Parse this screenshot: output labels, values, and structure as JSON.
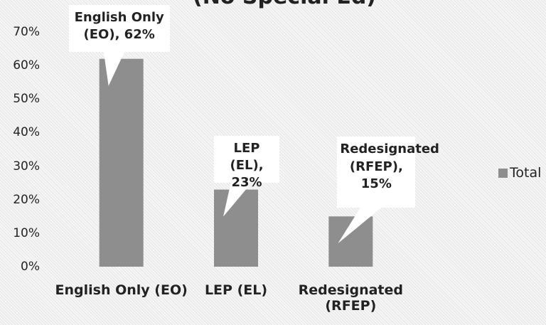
{
  "chart_data": {
    "type": "bar",
    "title": "(No Special Ed)",
    "categories": [
      "English Only (EO)",
      "LEP (EL)",
      "Redesignated (RFEP)"
    ],
    "series": [
      {
        "name": "Total",
        "color": "#8e8e8e",
        "values": [
          62,
          23,
          15
        ],
        "value_labels": [
          "English Only (EO), 62%",
          "LEP (EL), 23%",
          "Redesignated (RFEP), 15%"
        ]
      }
    ],
    "ylim": [
      0,
      70
    ],
    "yticks": [
      {
        "value": 0,
        "label": "0%"
      },
      {
        "value": 10,
        "label": "10%"
      },
      {
        "value": 20,
        "label": "20%"
      },
      {
        "value": 30,
        "label": "30%"
      },
      {
        "value": 40,
        "label": "40%"
      },
      {
        "value": 50,
        "label": "50%"
      },
      {
        "value": 60,
        "label": "60%"
      },
      {
        "value": 70,
        "label": "70%"
      }
    ],
    "grid": false,
    "legend": "right"
  }
}
